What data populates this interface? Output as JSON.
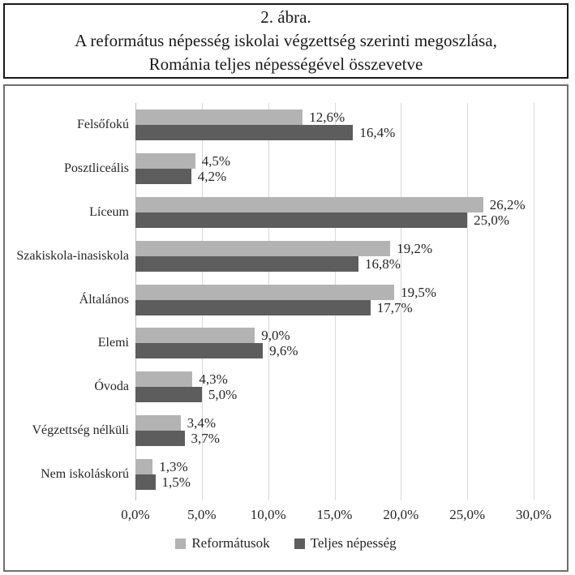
{
  "figure": {
    "title_lines": [
      "2. ábra.",
      "A református népesség iskolai végzettség szerinti megoszlása,",
      "Románia teljes népességével összevetve"
    ]
  },
  "chart_data": {
    "type": "bar",
    "orientation": "horizontal",
    "categories": [
      "Felsőfokú",
      "Posztliceális",
      "Líceum",
      "Szakiskola-inasiskola",
      "Általános",
      "Elemi",
      "Óvoda",
      "Végzettség nélküli",
      "Nem iskoláskorú"
    ],
    "series": [
      {
        "name": "Reformátusok",
        "color": "#b3b3b3",
        "values": [
          12.6,
          4.5,
          26.2,
          19.2,
          19.5,
          9.0,
          4.3,
          3.4,
          1.3
        ]
      },
      {
        "name": "Teljes népesség",
        "color": "#5d5d5d",
        "values": [
          16.4,
          4.2,
          25.0,
          16.8,
          17.7,
          9.6,
          5.0,
          3.7,
          1.5
        ]
      }
    ],
    "value_labels": [
      [
        "12,6%",
        "4,5%",
        "26,2%",
        "19,2%",
        "19,5%",
        "9,0%",
        "4,3%",
        "3,4%",
        "1,3%"
      ],
      [
        "16,4%",
        "4,2%",
        "25,0%",
        "16,8%",
        "17,7%",
        "9,6%",
        "5,0%",
        "3,7%",
        "1,5%"
      ]
    ],
    "xlim": [
      0,
      30
    ],
    "x_tick_labels": [
      "0,0%",
      "5,0%",
      "10,0%",
      "15,0%",
      "20,0%",
      "25,0%",
      "30,0%"
    ],
    "grid": true,
    "gridline_color": "#d9d9d9",
    "legend_position": "bottom"
  }
}
